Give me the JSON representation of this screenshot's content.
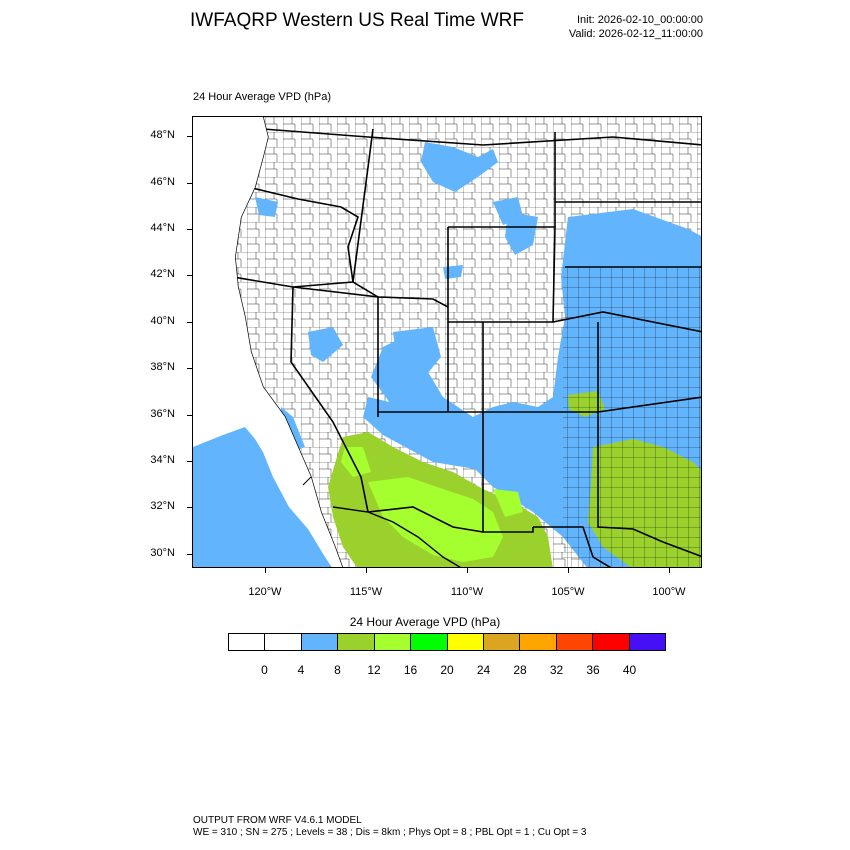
{
  "header": {
    "title": "IWFAQRP Western US Real Time WRF",
    "init": "Init: 2026-02-10_00:00:00",
    "valid": "Valid: 2026-02-12_11:00:00"
  },
  "field_label": "24 Hour Average VPD   (hPa)",
  "map": {
    "lat_labels": [
      "48°N",
      "46°N",
      "44°N",
      "42°N",
      "40°N",
      "38°N",
      "36°N",
      "34°N",
      "32°N",
      "30°N"
    ],
    "lon_labels": [
      "120°W",
      "115°W",
      "110°W",
      "105°W",
      "100°W"
    ],
    "colors": {
      "land": "#ffffff",
      "vpd_4_8": "#62b5fd",
      "vpd_8_12": "#9bd12d",
      "vpd_12_16": "#a5ff2f",
      "border": "#000000",
      "county": "#000000"
    }
  },
  "colorbar": {
    "title": "24 Hour Average VPD  (hPa)",
    "colors": [
      "#ffffff",
      "#ffffff",
      "#62b5fd",
      "#9bd12d",
      "#a5ff2f",
      "#00ff00",
      "#ffff00",
      "#daa520",
      "#ffa500",
      "#ff4500",
      "#ff0000",
      "#4510f6"
    ],
    "labels": [
      "0",
      "4",
      "8",
      "12",
      "16",
      "20",
      "24",
      "28",
      "32",
      "36",
      "40"
    ]
  },
  "footer": {
    "line1": "OUTPUT FROM WRF V4.6.1 MODEL",
    "line2": "WE = 310 ; SN = 275 ; Levels = 38 ; Dis = 8km ; Phys Opt = 8 ; PBL Opt = 1 ; Cu Opt = 3"
  }
}
